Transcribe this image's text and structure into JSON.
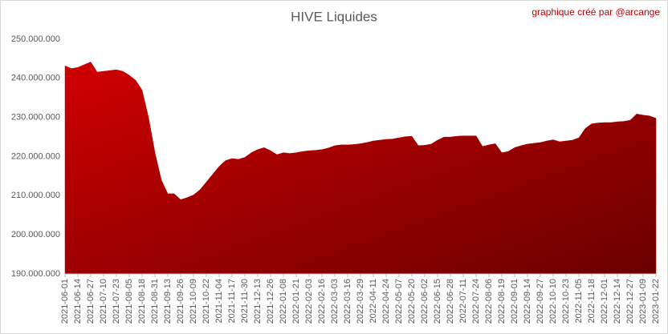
{
  "chart_data": {
    "type": "area",
    "title": "HIVE Liquides",
    "credit": "graphique créé par @arcange",
    "color": "#c00000",
    "grid": false,
    "categories": [
      "2021-06-01",
      null,
      "2021-06-14",
      null,
      "2021-06-27",
      null,
      "2021-07-10",
      null,
      "2021-07-23",
      null,
      "2021-08-05",
      null,
      "2021-08-18",
      null,
      "2021-08-31",
      null,
      "2021-09-13",
      null,
      "2021-09-26",
      null,
      "2021-10-09",
      null,
      "2021-10-22",
      null,
      "2021-11-04",
      null,
      "2021-11-17",
      null,
      "2021-11-30",
      null,
      "2021-12-13",
      null,
      "2021-12-26",
      null,
      "2022-01-08",
      null,
      "2022-01-21",
      null,
      "2022-02-03",
      null,
      "2022-02-16",
      null,
      "2022-03-03",
      null,
      "2022-03-16",
      null,
      "2022-03-29",
      null,
      "2022-04-11",
      null,
      "2022-04-24",
      null,
      "2022-05-07",
      null,
      "2022-05-20",
      null,
      "2022-06-02",
      null,
      "2022-06-15",
      null,
      "2022-06-28",
      null,
      "2022-07-11",
      null,
      "2022-07-24",
      null,
      "2022-08-06",
      null,
      "2022-08-19",
      null,
      "2022-09-01",
      null,
      "2022-09-14",
      null,
      "2022-09-27",
      null,
      "2022-10-10",
      null,
      "2022-10-23",
      null,
      "2022-11-05",
      null,
      "2022-11-18",
      null,
      "2022-12-01",
      null,
      "2022-12-14",
      null,
      "2022-12-27",
      null,
      "2023-01-09",
      null,
      "2023-01-22"
    ],
    "values": [
      243200000,
      242500000,
      242800000,
      243500000,
      244200000,
      241600000,
      241800000,
      242000000,
      242200000,
      241800000,
      240800000,
      239500000,
      237000000,
      230000000,
      221000000,
      214000000,
      210500000,
      210500000,
      209000000,
      209500000,
      210200000,
      211500000,
      213500000,
      215500000,
      217500000,
      219000000,
      219500000,
      219300000,
      219800000,
      221000000,
      221800000,
      222300000,
      221500000,
      220500000,
      221000000,
      220800000,
      221000000,
      221300000,
      221500000,
      221600000,
      221800000,
      222200000,
      222800000,
      223000000,
      223000000,
      223100000,
      223300000,
      223600000,
      224000000,
      224200000,
      224400000,
      224500000,
      224800000,
      225100000,
      225200000,
      222800000,
      222900000,
      223200000,
      224200000,
      225000000,
      225000000,
      225200000,
      225300000,
      225300000,
      225300000,
      222600000,
      223000000,
      223300000,
      221000000,
      221300000,
      222300000,
      222800000,
      223200000,
      223400000,
      223600000,
      224000000,
      224300000,
      223800000,
      224000000,
      224200000,
      224800000,
      227200000,
      228400000,
      228600000,
      228700000,
      228700000,
      228900000,
      229000000,
      229300000,
      230900000,
      230600000,
      230400000,
      229800000
    ],
    "ylim": [
      190000000,
      250000000
    ],
    "yticks": [
      {
        "value": 190000000,
        "label": "190.000.000"
      },
      {
        "value": 200000000,
        "label": "200.000.000"
      },
      {
        "value": 210000000,
        "label": "210.000.000"
      },
      {
        "value": 220000000,
        "label": "220.000.000"
      },
      {
        "value": 230000000,
        "label": "230.000.000"
      },
      {
        "value": 240000000,
        "label": "240.000.000"
      },
      {
        "value": 250000000,
        "label": "250.000.000"
      }
    ]
  }
}
